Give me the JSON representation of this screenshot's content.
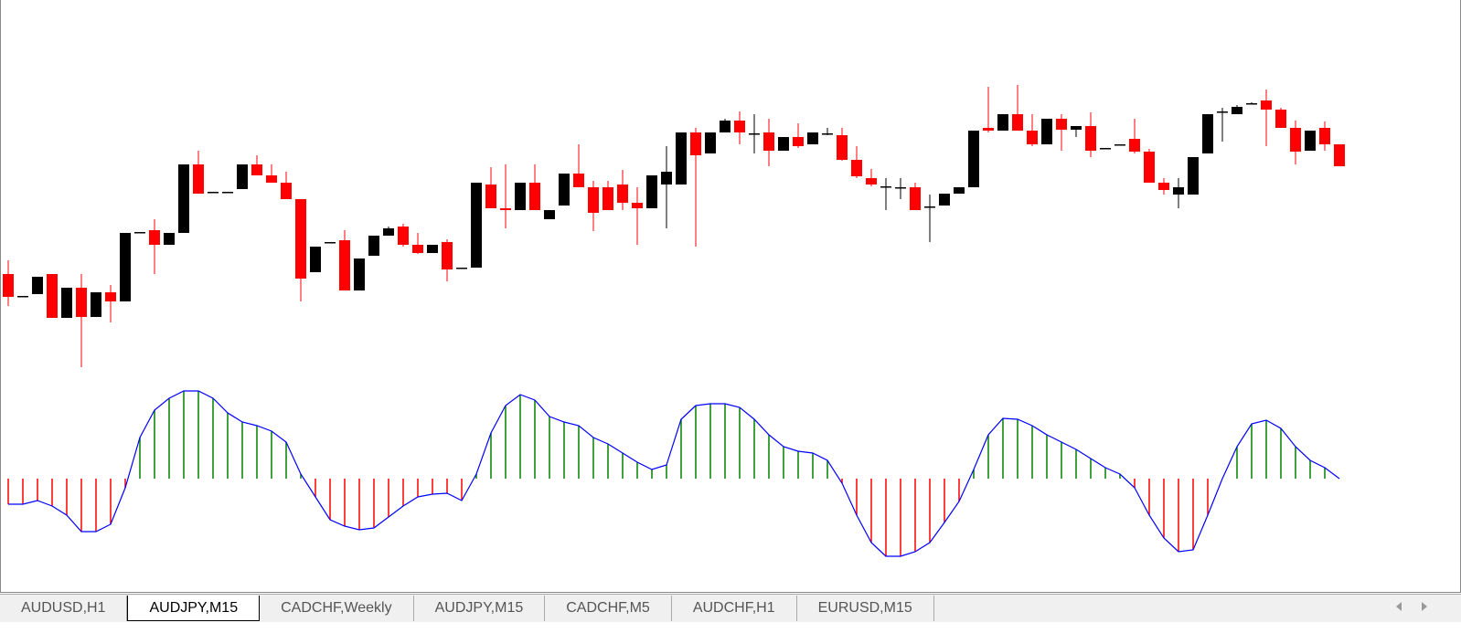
{
  "chart_data": [
    {
      "type": "candlestick",
      "up_color": "#000000",
      "down_color": "#ff0000",
      "ylim": [
        0,
        340
      ],
      "open": [
        120,
        96,
        98,
        120,
        72,
        105,
        73,
        100,
        90,
        166,
        168,
        152,
        165,
        240,
        210,
        210,
        213,
        240,
        228,
        220,
        202,
        122,
        155,
        157,
        102,
        140,
        162,
        172,
        152,
        143,
        155,
        127,
        127,
        218,
        192,
        190,
        220,
        180,
        195,
        230,
        215,
        215,
        218,
        198,
        192,
        218,
        218,
        275,
        252,
        275,
        288,
        274,
        275,
        255,
        270,
        262,
        274,
        272,
        245,
        225,
        216,
        215,
        215,
        194,
        195,
        208,
        215,
        280,
        277,
        295,
        277,
        262,
        290,
        278,
        282,
        258,
        262,
        268,
        254,
        220,
        207,
        207,
        252,
        298,
        295,
        307,
        310,
        300,
        280,
        255,
        280,
        262
      ],
      "high": [
        135,
        96,
        117,
        120,
        105,
        120,
        100,
        108,
        165,
        166,
        180,
        165,
        240,
        255,
        210,
        210,
        240,
        250,
        240,
        232,
        202,
        150,
        155,
        168,
        137,
        162,
        172,
        175,
        165,
        152,
        158,
        127,
        220,
        237,
        240,
        220,
        240,
        190,
        230,
        262,
        222,
        222,
        234,
        215,
        228,
        260,
        275,
        280,
        275,
        290,
        298,
        295,
        290,
        270,
        285,
        275,
        280,
        280,
        260,
        235,
        225,
        225,
        220,
        207,
        208,
        215,
        277,
        325,
        295,
        327,
        295,
        290,
        295,
        282,
        297,
        258,
        262,
        290,
        257,
        225,
        225,
        248,
        295,
        302,
        305,
        308,
        322,
        302,
        288,
        277,
        287,
        262
      ],
      "low": [
        85,
        96,
        98,
        72,
        72,
        18,
        73,
        67,
        90,
        166,
        120,
        152,
        165,
        208,
        210,
        210,
        213,
        228,
        220,
        202,
        90,
        122,
        155,
        102,
        102,
        140,
        162,
        150,
        142,
        143,
        112,
        127,
        127,
        192,
        170,
        190,
        190,
        180,
        195,
        215,
        167,
        190,
        190,
        152,
        192,
        170,
        218,
        150,
        252,
        275,
        262,
        252,
        238,
        255,
        258,
        262,
        272,
        244,
        225,
        216,
        190,
        202,
        190,
        155,
        195,
        208,
        215,
        275,
        277,
        277,
        260,
        262,
        255,
        270,
        248,
        258,
        262,
        252,
        220,
        207,
        192,
        207,
        252,
        265,
        295,
        306,
        260,
        280,
        240,
        255,
        255,
        238
      ],
      "close": [
        95,
        96,
        117,
        72,
        105,
        73,
        100,
        90,
        165,
        166,
        152,
        165,
        240,
        208,
        210,
        210,
        240,
        228,
        220,
        202,
        115,
        150,
        155,
        102,
        137,
        162,
        170,
        152,
        143,
        152,
        125,
        127,
        220,
        192,
        190,
        220,
        190,
        190,
        230,
        215,
        187,
        190,
        198,
        192,
        228,
        232,
        275,
        250,
        275,
        288,
        275,
        274,
        255,
        270,
        260,
        275,
        274,
        245,
        227,
        218,
        216,
        215,
        190,
        194,
        208,
        215,
        277,
        277,
        295,
        277,
        262,
        290,
        278,
        282,
        255,
        258,
        262,
        254,
        220,
        212,
        215,
        248,
        295,
        298,
        303,
        307,
        300,
        280,
        254,
        277,
        262,
        238
      ]
    },
    {
      "type": "histogram",
      "ylim": [
        -100,
        110
      ],
      "up_color": "#008000",
      "down_color": "#ff0000",
      "line_color": "#0000ff",
      "values": [
        -28,
        -28,
        -24,
        -30,
        -40,
        -58,
        -58,
        -50,
        -10,
        45,
        75,
        88,
        96,
        96,
        88,
        72,
        62,
        58,
        52,
        40,
        5,
        -20,
        -45,
        -52,
        -56,
        -54,
        -42,
        -30,
        -20,
        -17,
        -16,
        -24,
        5,
        50,
        80,
        92,
        86,
        68,
        62,
        58,
        45,
        38,
        28,
        18,
        10,
        15,
        65,
        80,
        82,
        82,
        78,
        65,
        48,
        35,
        30,
        28,
        20,
        -5,
        -40,
        -70,
        -85,
        -85,
        -80,
        -70,
        -48,
        -25,
        10,
        48,
        66,
        65,
        58,
        48,
        40,
        32,
        22,
        12,
        5,
        -10,
        -40,
        -65,
        -80,
        -78,
        -40,
        0,
        35,
        60,
        64,
        55,
        35,
        20,
        12,
        0
      ]
    }
  ],
  "tabs": [
    "AUDUSD,H1",
    "AUDJPY,M15",
    "CADCHF,Weekly",
    "AUDJPY,M15",
    "CADCHF,M5",
    "AUDCHF,H1",
    "EURUSD,M15"
  ],
  "active_tab": 1
}
